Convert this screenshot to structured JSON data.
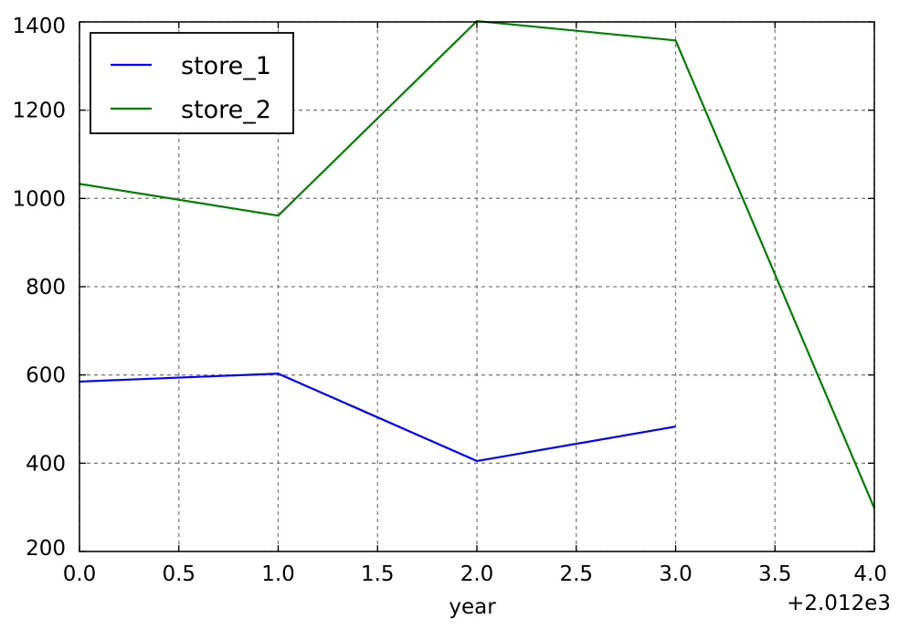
{
  "chart_data": {
    "type": "line",
    "title": "",
    "xlabel": "year",
    "ylabel": "",
    "x_offset_text": "+2.012e3",
    "xlim": [
      0.0,
      4.0
    ],
    "ylim": [
      200,
      1400
    ],
    "x_ticks": [
      0.0,
      0.5,
      1.0,
      1.5,
      2.0,
      2.5,
      3.0,
      3.5,
      4.0
    ],
    "x_tick_labels": [
      "0.0",
      "0.5",
      "1.0",
      "1.5",
      "2.0",
      "2.5",
      "3.0",
      "3.5",
      "4.0"
    ],
    "y_ticks": [
      200,
      400,
      600,
      800,
      1000,
      1200,
      1400
    ],
    "y_tick_labels": [
      "200",
      "400",
      "600",
      "800",
      "1000",
      "1200",
      "1400"
    ],
    "grid": true,
    "legend_position": "top-left",
    "series": [
      {
        "name": "store_1",
        "color": "#0000ff",
        "x": [
          0,
          1,
          2,
          3
        ],
        "values": [
          585,
          603,
          405,
          483
        ]
      },
      {
        "name": "store_2",
        "color": "#008000",
        "x": [
          0,
          1,
          2,
          3,
          4
        ],
        "values": [
          1033,
          961,
          1402,
          1358,
          298
        ]
      }
    ]
  }
}
